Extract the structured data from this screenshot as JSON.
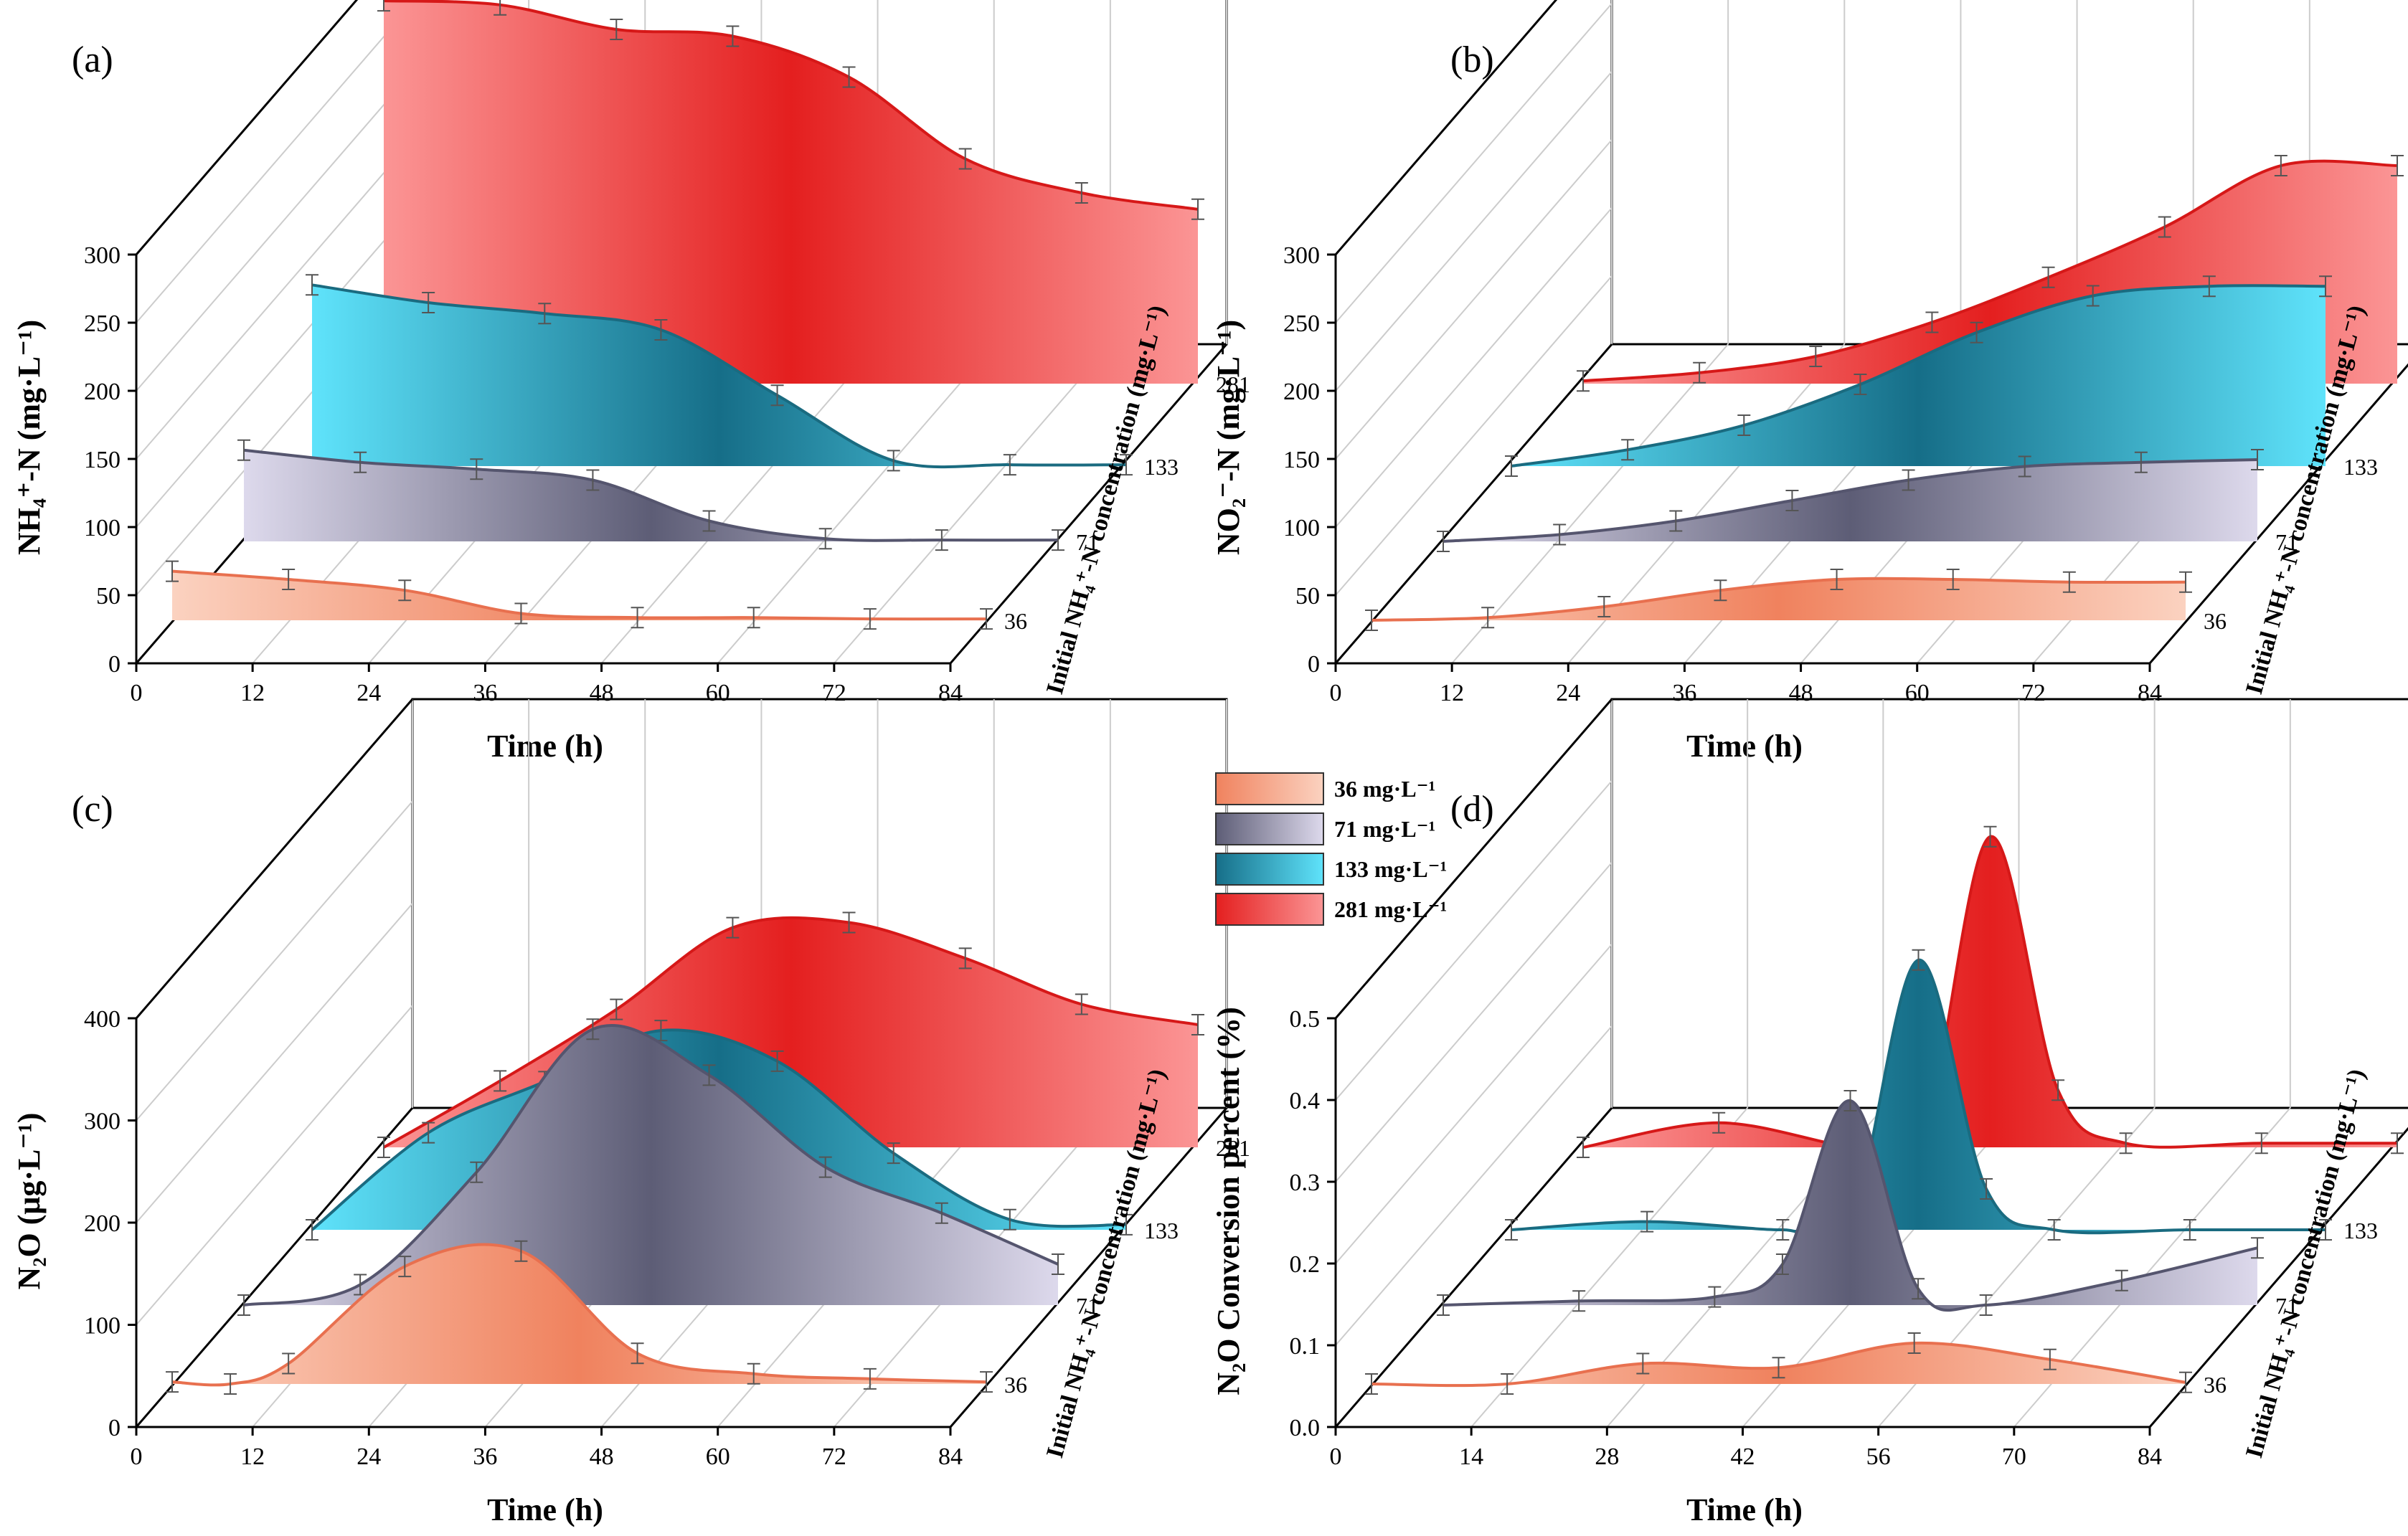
{
  "figure": {
    "time_label": "Time (h)",
    "depth_title": "Initial NH₄⁺-N concentration (mg·L⁻¹)",
    "depth_values": [
      "36",
      "71",
      "133",
      "281"
    ]
  },
  "series_colors": {
    "36": {
      "light": "#fbd2c0",
      "dark": "#f0825e",
      "line": "#e8704f"
    },
    "71": {
      "light": "#ddd9ec",
      "dark": "#5d5d76",
      "line": "#55556e"
    },
    "133": {
      "light": "#5fe3fb",
      "dark": "#166e88",
      "line": "#1a6b80"
    },
    "281": {
      "light": "#fb9595",
      "dark": "#e41f1f",
      "line": "#d61818"
    }
  },
  "legend": {
    "items": [
      {
        "key": "36",
        "label": "36 mg·L⁻¹"
      },
      {
        "key": "71",
        "label": "71 mg·L⁻¹"
      },
      {
        "key": "133",
        "label": "133 mg·L⁻¹"
      },
      {
        "key": "281",
        "label": "281 mg·L⁻¹"
      }
    ]
  },
  "chart_data": [
    {
      "panel": "(a)",
      "type": "area",
      "ylabel": "NH₄⁺-N (mg·L⁻¹)",
      "xlabel": "Time (h)",
      "xlim": [
        0,
        84
      ],
      "xticks": [
        0,
        12,
        24,
        36,
        48,
        60,
        72,
        84
      ],
      "ylim": [
        0,
        300
      ],
      "yticks": [
        0,
        50,
        100,
        150,
        200,
        250,
        300
      ],
      "depth_title": "Initial NH₄⁺-N concentration (mg·L⁻¹)",
      "series": [
        {
          "name": "36",
          "x": [
            0,
            12,
            24,
            36,
            48,
            60,
            72,
            84
          ],
          "y": [
            36,
            30,
            22,
            5,
            2,
            2,
            1,
            1
          ]
        },
        {
          "name": "71",
          "x": [
            0,
            12,
            24,
            36,
            48,
            60,
            72,
            84
          ],
          "y": [
            67,
            58,
            53,
            45,
            15,
            2,
            1,
            1
          ]
        },
        {
          "name": "133",
          "x": [
            0,
            12,
            24,
            36,
            48,
            60,
            72,
            84
          ],
          "y": [
            133,
            120,
            112,
            100,
            52,
            4,
            1,
            1
          ]
        },
        {
          "name": "281",
          "x": [
            0,
            12,
            24,
            36,
            48,
            60,
            72,
            84
          ],
          "y": [
            281,
            278,
            260,
            255,
            225,
            165,
            140,
            128
          ]
        }
      ]
    },
    {
      "panel": "(b)",
      "type": "area",
      "ylabel": "NO₂⁻-N (mg·L⁻¹)",
      "xlabel": "Time (h)",
      "xlim": [
        0,
        84
      ],
      "xticks": [
        0,
        12,
        24,
        36,
        48,
        60,
        72,
        84
      ],
      "ylim": [
        0,
        300
      ],
      "yticks": [
        0,
        50,
        100,
        150,
        200,
        250,
        300
      ],
      "depth_title": "Initial NH₄⁺-N concentration (mg·L⁻¹)",
      "series": [
        {
          "name": "36",
          "x": [
            0,
            12,
            24,
            36,
            48,
            60,
            72,
            84
          ],
          "y": [
            0,
            2,
            10,
            22,
            30,
            30,
            28,
            28
          ]
        },
        {
          "name": "71",
          "x": [
            0,
            12,
            24,
            36,
            48,
            60,
            72,
            84
          ],
          "y": [
            0,
            5,
            15,
            30,
            45,
            55,
            58,
            60
          ]
        },
        {
          "name": "133",
          "x": [
            0,
            12,
            24,
            36,
            48,
            60,
            72,
            84
          ],
          "y": [
            0,
            12,
            30,
            60,
            98,
            125,
            132,
            132
          ]
        },
        {
          "name": "281",
          "x": [
            0,
            12,
            24,
            36,
            48,
            60,
            72,
            84
          ],
          "y": [
            2,
            8,
            20,
            45,
            78,
            115,
            160,
            160
          ]
        }
      ]
    },
    {
      "panel": "(c)",
      "type": "area",
      "ylabel": "N₂O (μg·L⁻¹)",
      "xlabel": "Time (h)",
      "xlim": [
        0,
        84
      ],
      "xticks": [
        0,
        12,
        24,
        36,
        48,
        60,
        72,
        84
      ],
      "ylim": [
        0,
        400
      ],
      "yticks": [
        0,
        100,
        200,
        300,
        400
      ],
      "depth_title": "Initial NH₄⁺-N concentration (mg·L⁻¹)",
      "series": [
        {
          "name": "36",
          "x": [
            0,
            6,
            12,
            24,
            36,
            48,
            60,
            72,
            84
          ],
          "y": [
            2,
            0,
            20,
            115,
            130,
            30,
            10,
            5,
            2
          ]
        },
        {
          "name": "71",
          "x": [
            0,
            12,
            24,
            36,
            48,
            60,
            72,
            84
          ],
          "y": [
            0,
            20,
            130,
            270,
            225,
            135,
            90,
            40
          ]
        },
        {
          "name": "133",
          "x": [
            0,
            12,
            24,
            36,
            48,
            60,
            72,
            84
          ],
          "y": [
            0,
            95,
            145,
            195,
            165,
            75,
            10,
            5
          ]
        },
        {
          "name": "281",
          "x": [
            0,
            12,
            24,
            36,
            48,
            60,
            72,
            84
          ],
          "y": [
            0,
            65,
            135,
            215,
            220,
            185,
            140,
            120
          ]
        }
      ]
    },
    {
      "panel": "(d)",
      "type": "area",
      "ylabel": "N₂O Conversion percent (%)",
      "xlabel": "Time (h)",
      "xlim": [
        0,
        84
      ],
      "xticks": [
        0,
        14,
        28,
        42,
        56,
        70,
        84
      ],
      "ylim": [
        0,
        0.5
      ],
      "yticks": [
        0.0,
        0.1,
        0.2,
        0.3,
        0.4,
        0.5
      ],
      "depth_title": "Initial NH₄⁺-N concentration (mg·L⁻¹)",
      "series": [
        {
          "name": "36",
          "x": [
            0,
            14,
            28,
            42,
            56,
            70,
            84
          ],
          "y": [
            0.0,
            0.0,
            0.025,
            0.02,
            0.05,
            0.03,
            0.002
          ]
        },
        {
          "name": "71",
          "x": [
            0,
            14,
            28,
            35,
            42,
            49,
            56,
            70,
            84
          ],
          "y": [
            0.0,
            0.005,
            0.01,
            0.05,
            0.25,
            0.02,
            0.0,
            0.03,
            0.07
          ]
        },
        {
          "name": "133",
          "x": [
            0,
            14,
            28,
            35,
            42,
            49,
            56,
            70,
            84
          ],
          "y": [
            0.0,
            0.01,
            0.0,
            0.01,
            0.33,
            0.05,
            0.0,
            0.0,
            0.0
          ]
        },
        {
          "name": "281",
          "x": [
            0,
            14,
            28,
            35,
            42,
            49,
            56,
            70,
            84
          ],
          "y": [
            0.0,
            0.03,
            0.0,
            0.01,
            0.38,
            0.07,
            0.005,
            0.005,
            0.005
          ]
        }
      ]
    }
  ]
}
